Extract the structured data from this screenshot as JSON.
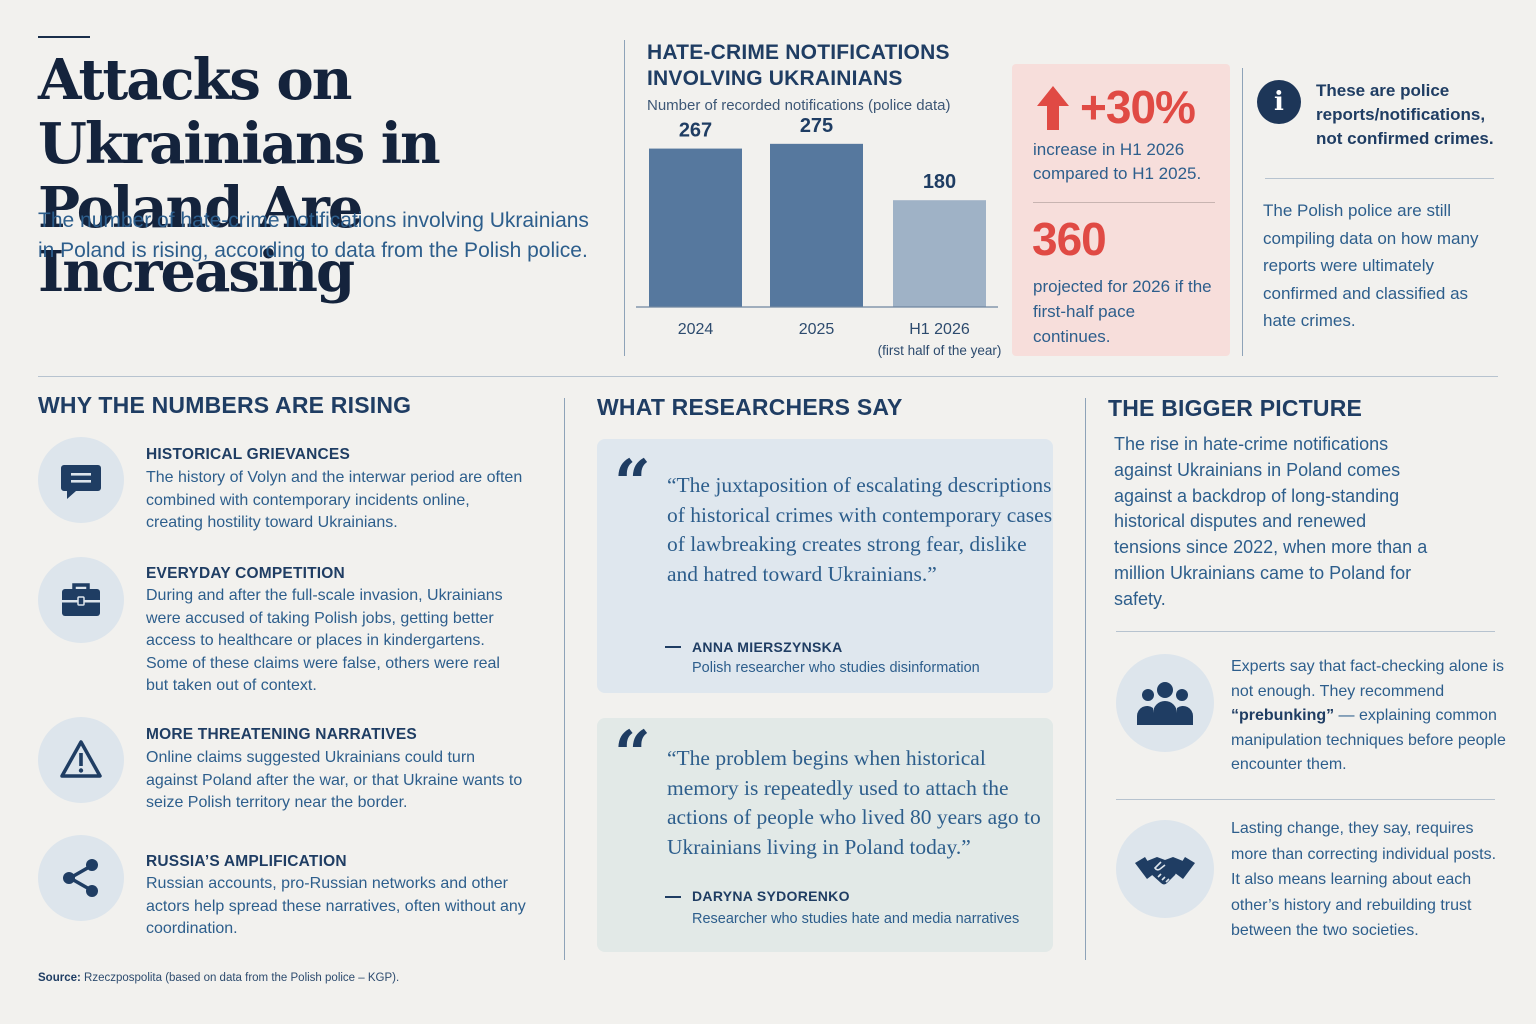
{
  "header": {
    "title": "Attacks on Ukrainians in Poland Are Increasing",
    "lede": "The number of hate-crime notifications involving Ukrainians in Poland is rising, according to data from the Polish police."
  },
  "chart_data": {
    "type": "bar",
    "title": "HATE-CRIME NOTIFICATIONS INVOLVING UKRAINIANS",
    "subtitle": "Number of recorded notifications (police data)",
    "categories": [
      "2024",
      "2025",
      "H1 2026"
    ],
    "category_notes": [
      "",
      "",
      "(first half of the year)"
    ],
    "values": [
      267,
      275,
      180
    ],
    "value_labels": [
      "267",
      "275",
      "180"
    ],
    "colors": [
      "#56789e",
      "#56789e",
      "#9fb2c6"
    ],
    "ylim": [
      0,
      300
    ],
    "grid": false,
    "legend": "none"
  },
  "stats": {
    "increase_value": "+30%",
    "increase_text": "increase in H1 2026 compared to H1 2025.",
    "projection_value": "360",
    "projection_text": "projected for 2026 if the first-half pace continues."
  },
  "info": {
    "icon": "info-icon",
    "bold": "These are police reports/notifications, not confirmed crimes.",
    "text": "The Polish police are still compiling data on how many reports were ultimately confirmed and classified as hate crimes."
  },
  "why": {
    "heading": "WHY THE NUMBERS ARE RISING",
    "items": [
      {
        "icon": "chat-bubble-icon",
        "title": "HISTORICAL GRIEVANCES",
        "text": "The history of Volyn and the interwar period are often combined with contemporary incidents online, creating hostility toward Ukrainians."
      },
      {
        "icon": "briefcase-icon",
        "title": "EVERYDAY COMPETITION",
        "text": "During and after the full-scale invasion, Ukrainians were accused of taking Polish jobs, getting better access to healthcare or places in kindergartens. Some of these claims were false, others were real but taken out of context."
      },
      {
        "icon": "warning-icon",
        "title": "MORE THREATENING NARRATIVES",
        "text": "Online claims suggested Ukrainians could turn against Poland after the war, or that Ukraine wants to seize Polish territory near the border."
      },
      {
        "icon": "share-icon",
        "title": "RUSSIA’S AMPLIFICATION",
        "text": "Russian accounts, pro-Russian networks and other actors help spread these narratives, often without any coordination."
      }
    ]
  },
  "researchers": {
    "heading": "WHAT RESEARCHERS SAY",
    "quotes": [
      {
        "text": "“The juxtaposition of escalating descriptions of historical crimes with contemporary cases of lawbreaking creates strong fear, dislike and hatred toward Ukrainians.”",
        "name": "ANNA MIERSZYNSKA",
        "role": "Polish researcher who studies disinformation",
        "bg": "#dfe7ee"
      },
      {
        "text": "“The problem begins when historical memory is repeatedly used to attach the actions of people who lived 80 years ago to Ukrainians living in Poland today.”",
        "name": "DARYNA SYDORENKO",
        "role": "Researcher who studies hate and media narratives",
        "bg": "#e2e9e7"
      }
    ]
  },
  "bigger": {
    "heading": "THE BIGGER PICTURE",
    "text": "The rise in hate-crime notifications against Ukrainians in Poland comes against a backdrop of long-standing historical disputes and renewed tensions since 2022, when more than a million Ukrainians came to Poland for safety.",
    "experts_pre": "Experts say that fact-checking alone is not enough. They recommend ",
    "experts_bold": "“prebunking”",
    "experts_post": " — explaining common manipulation techniques before people encounter them.",
    "experts_icon": "people-group-icon",
    "lasting": "Lasting change, they say, requires more than correcting individual posts. It also means learning about each other’s history and rebuilding trust between the two societies.",
    "lasting_icon": "handshake-icon"
  },
  "source": {
    "label": "Source:",
    "text": "Rzeczpospolita (based on data from the Polish police – KGP)."
  },
  "colors": {
    "navy": "#1f3d63",
    "accent_red": "#e04a44",
    "bar_dark": "#56789e",
    "bar_light": "#9fb2c6"
  }
}
